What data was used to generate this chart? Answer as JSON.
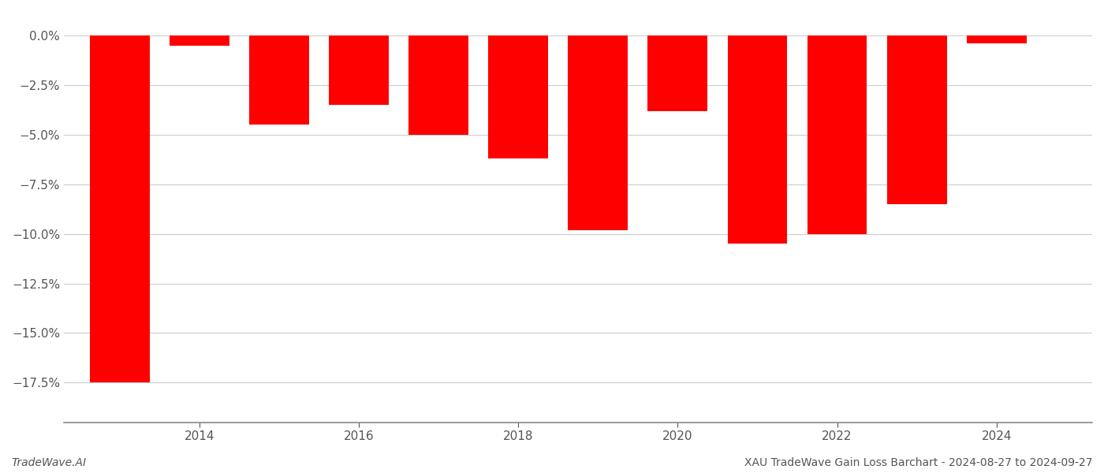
{
  "years": [
    2013,
    2014,
    2015,
    2016,
    2017,
    2018,
    2019,
    2020,
    2021,
    2022,
    2023,
    2024
  ],
  "values": [
    -17.5,
    -0.5,
    -4.5,
    -3.5,
    -5.0,
    -6.2,
    -9.8,
    -3.8,
    -10.5,
    -10.0,
    -8.5,
    -0.4
  ],
  "bar_color": "#ff0000",
  "background_color": "#ffffff",
  "grid_color": "#cccccc",
  "axis_color": "#888888",
  "text_color": "#555555",
  "ylabel_ticks": [
    0.0,
    -2.5,
    -5.0,
    -7.5,
    -10.0,
    -12.5,
    -15.0,
    -17.5
  ],
  "ylim": [
    -19.5,
    1.2
  ],
  "xlim": [
    2012.3,
    2025.2
  ],
  "xticks": [
    2014,
    2016,
    2018,
    2020,
    2022,
    2024
  ],
  "footer_left": "TradeWave.AI",
  "footer_right": "XAU TradeWave Gain Loss Barchart - 2024-08-27 to 2024-09-27",
  "bar_width": 0.75,
  "tick_fontsize": 11,
  "footer_fontsize": 10
}
